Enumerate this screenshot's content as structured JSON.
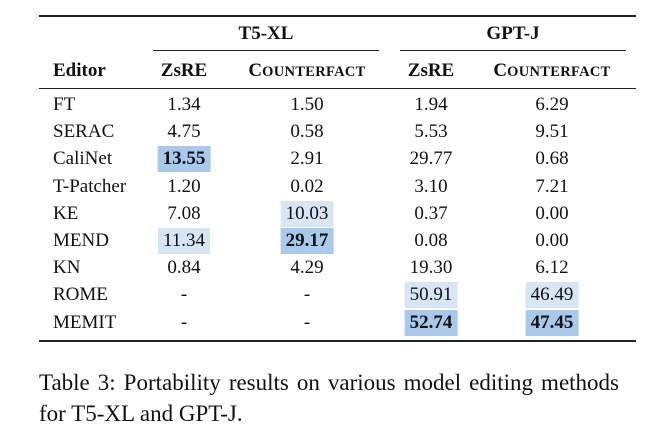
{
  "table": {
    "groups": [
      {
        "label": "T5-XL"
      },
      {
        "label": "GPT-J"
      }
    ],
    "editor_header": "Editor",
    "metric_headers": [
      {
        "big": "Z",
        "rest": "sRE"
      },
      {
        "big": "C",
        "rest": "OUNTERFACT"
      },
      {
        "big": "Z",
        "rest": "sRE"
      },
      {
        "big": "C",
        "rest": "OUNTERFACT"
      }
    ],
    "rows": [
      {
        "editor": "FT",
        "values": [
          "1.34",
          "1.50",
          "1.94",
          "6.29"
        ]
      },
      {
        "editor": "SERAC",
        "values": [
          "4.75",
          "0.58",
          "5.53",
          "9.51"
        ]
      },
      {
        "editor": "CaliNet",
        "values": [
          "13.55",
          "2.91",
          "29.77",
          "0.68"
        ]
      },
      {
        "editor": "T-Patcher",
        "values": [
          "1.20",
          "0.02",
          "3.10",
          "7.21"
        ]
      },
      {
        "editor": "KE",
        "values": [
          "7.08",
          "10.03",
          "0.37",
          "0.00"
        ]
      },
      {
        "editor": "MEND",
        "values": [
          "11.34",
          "29.17",
          "0.08",
          "0.00"
        ]
      },
      {
        "editor": "KN",
        "values": [
          "0.84",
          "4.29",
          "19.30",
          "6.12"
        ]
      },
      {
        "editor": "ROME",
        "values": [
          "-",
          "-",
          "50.91",
          "46.49"
        ]
      },
      {
        "editor": "MEMIT",
        "values": [
          "-",
          "-",
          "52.74",
          "47.45"
        ]
      }
    ],
    "highlights": {
      "strong": [
        "2.0",
        "5.1",
        "8.2",
        "8.3"
      ],
      "light": [
        "4.1",
        "5.0",
        "7.2",
        "7.3"
      ],
      "bold": [
        "2.0",
        "5.1",
        "8.2",
        "8.3"
      ]
    },
    "colors": {
      "strong": "#a9c9ea",
      "light": "#d6e6f6"
    }
  },
  "caption": "Table 3: Portability results on various model editing methods for T5-XL and GPT-J."
}
